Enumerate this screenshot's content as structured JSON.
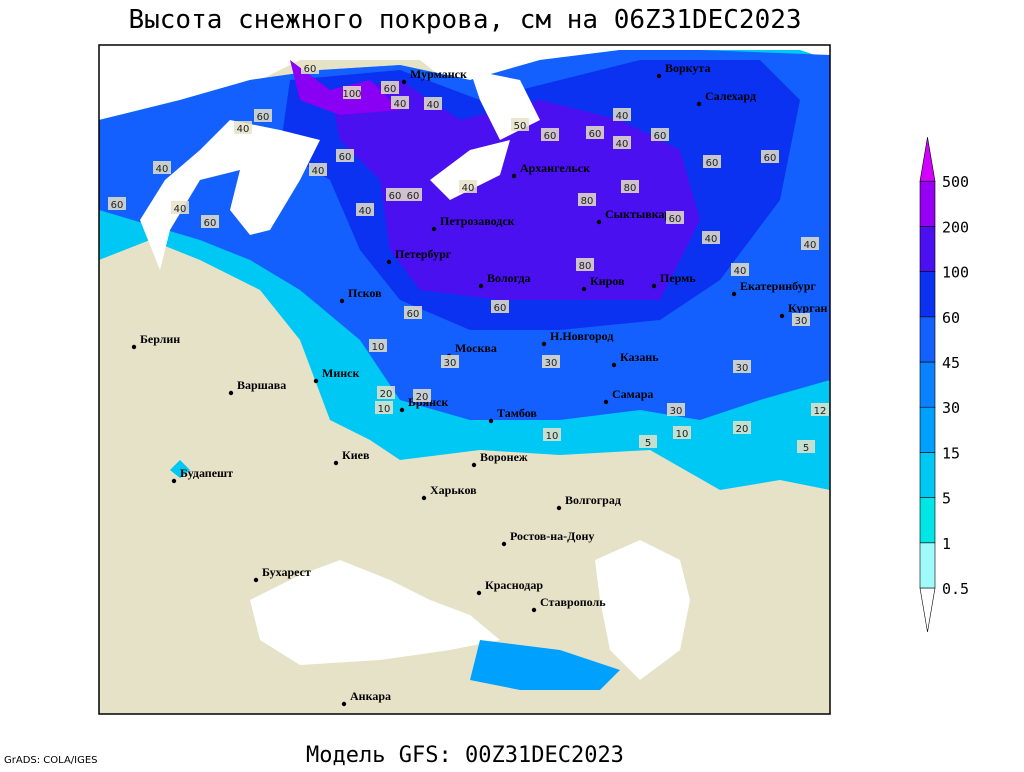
{
  "title": "Высота снежного покрова, см на 06Z31DEC2023",
  "footer": "Модель GFS: 00Z31DEC2023",
  "credit": "GrADS: COLA/IGES",
  "legend": {
    "levels": [
      0.5,
      1,
      5,
      15,
      30,
      45,
      60,
      100,
      200,
      500
    ],
    "colors": [
      "#ffffff",
      "#a0fafa",
      "#00e6e6",
      "#00c8f5",
      "#00a0ff",
      "#0a82ff",
      "#1460ff",
      "#0a32f0",
      "#4a10f0",
      "#9600f5",
      "#d200ff"
    ]
  },
  "cities": [
    "Мурманск",
    "Воркута",
    "Салехард",
    "Архангельск",
    "Сыктывкар",
    "Петрозаводск",
    "Петербург",
    "Вологда",
    "Киров",
    "Пермь",
    "Екатеринбург",
    "Курган",
    "Псков",
    "Н.Новгород",
    "Москва",
    "Казань",
    "Берлин",
    "Минск",
    "Варшава",
    "Брянск",
    "Тамбов",
    "Самара",
    "Воронеж",
    "Киев",
    "Будапешт",
    "Харьков",
    "Волгоград",
    "Ростов-на-Дону",
    "Бухарест",
    "Краснодар",
    "Ставрополь",
    "Анкара"
  ],
  "contour_labels": [
    60,
    40,
    100,
    60,
    60,
    40,
    40,
    60,
    40,
    40,
    60,
    40,
    60,
    40,
    60,
    60,
    40,
    60,
    60,
    40,
    80,
    60,
    60,
    80,
    60,
    80,
    40,
    60,
    40,
    40,
    40,
    60,
    60,
    30,
    10,
    30,
    30,
    20,
    10,
    20,
    10,
    5,
    30,
    10,
    20,
    5,
    12,
    30,
    50
  ]
}
